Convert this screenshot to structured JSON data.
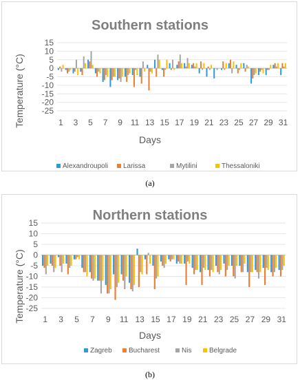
{
  "captions": {
    "a": "(a)",
    "b": "(b)"
  },
  "chart_data": [
    {
      "type": "bar",
      "title": "Southern stations",
      "xlabel": "Days",
      "ylabel": "Temperature (°C)",
      "ylim": [
        -25,
        15
      ],
      "yticks": [
        15,
        10,
        5,
        0,
        -5,
        -10,
        -15,
        -20,
        -25
      ],
      "categories": [
        1,
        2,
        3,
        4,
        5,
        6,
        7,
        8,
        9,
        10,
        11,
        12,
        13,
        14,
        15,
        16,
        17,
        18,
        19,
        20,
        21,
        22,
        23,
        24,
        25,
        26,
        27,
        28,
        29,
        30,
        31
      ],
      "xtick_labels": [
        "1",
        "3",
        "5",
        "7",
        "9",
        "11",
        "13",
        "15",
        "17",
        "19",
        "21",
        "23",
        "25",
        "27",
        "29",
        "31"
      ],
      "legend_position": "bottom",
      "series": [
        {
          "name": "Alexandroupoli",
          "color": "#2e9bd6",
          "values": [
            -1,
            -1,
            -3,
            -2,
            5,
            -3,
            -8,
            -11,
            -7,
            -5,
            -4,
            -5,
            2,
            5,
            -1,
            3,
            2,
            3,
            2,
            -3,
            -5,
            -6,
            -1,
            3,
            2,
            3,
            -9,
            -4,
            -4,
            2,
            -4
          ]
        },
        {
          "name": "Larissa",
          "color": "#ed7d31",
          "values": [
            1,
            -3,
            -2,
            -4,
            4,
            -5,
            -7,
            -7,
            -6,
            -8,
            -11,
            -9,
            -13,
            -5,
            -5,
            -1,
            4,
            1,
            3,
            4,
            1,
            0,
            4,
            5,
            -3,
            -2,
            -6,
            -2,
            -1,
            3,
            3
          ]
        },
        {
          "name": "Mytilini",
          "color": "#a5a5a5",
          "values": [
            -2,
            -2,
            5,
            7,
            10,
            -2,
            -4,
            -5,
            -8,
            -4,
            -1,
            4,
            -2,
            8,
            -1,
            5,
            8,
            6,
            1,
            -1,
            -1,
            -1,
            -1,
            -3,
            -1,
            2,
            -4,
            -1,
            -1,
            1,
            1
          ]
        },
        {
          "name": "Thessaloniki",
          "color": "#ffc000",
          "values": [
            2,
            -1,
            -4,
            3,
            2,
            -3,
            -5,
            -5,
            -5,
            -3,
            -4,
            -2,
            -3,
            5,
            5,
            -1,
            3,
            3,
            3,
            3,
            2,
            0,
            3,
            4,
            3,
            1,
            -3,
            -3,
            2,
            3,
            3
          ]
        }
      ]
    },
    {
      "type": "bar",
      "title": "Northern stations",
      "xlabel": "Days",
      "ylabel": "Temperature (°C)",
      "ylim": [
        -25,
        15
      ],
      "yticks": [
        15,
        10,
        5,
        0,
        -5,
        -10,
        -15,
        -20,
        -25
      ],
      "categories": [
        1,
        2,
        3,
        4,
        5,
        6,
        7,
        8,
        9,
        10,
        11,
        12,
        13,
        14,
        15,
        16,
        17,
        18,
        19,
        20,
        21,
        22,
        23,
        24,
        25,
        26,
        27,
        28,
        29,
        30,
        31
      ],
      "xtick_labels": [
        "1",
        "3",
        "5",
        "7",
        "9",
        "11",
        "13",
        "15",
        "17",
        "19",
        "21",
        "23",
        "25",
        "27",
        "29",
        "31"
      ],
      "legend_position": "bottom",
      "series": [
        {
          "name": "Zagreb",
          "color": "#2e9bd6",
          "values": [
            -5,
            -4,
            -1,
            -4,
            -2,
            -6,
            -8,
            -12,
            -14,
            -9,
            -9,
            -13,
            3,
            -2,
            -5,
            -3,
            -2,
            -4,
            -4,
            -6,
            -8,
            -7,
            -5,
            -4,
            -5,
            -5,
            -8,
            -7,
            -6,
            -8,
            -7
          ]
        },
        {
          "name": "Bucharest",
          "color": "#ed7d31",
          "values": [
            -6,
            -5,
            -5,
            -9,
            -2,
            -8,
            -11,
            -12,
            -18,
            -21,
            -12,
            -16,
            -15,
            -9,
            -16,
            -5,
            -3,
            -3,
            -14,
            -9,
            -14,
            -10,
            -8,
            -10,
            -10,
            -8,
            -15,
            -8,
            -14,
            -10,
            -10
          ]
        },
        {
          "name": "Nis",
          "color": "#a5a5a5",
          "values": [
            -9,
            -8,
            -8,
            -6,
            -1,
            -8,
            -12,
            -18,
            -18,
            -15,
            -16,
            -17,
            -8,
            1,
            -11,
            -6,
            -2,
            -4,
            -3,
            -7,
            -6,
            -7,
            -9,
            -7,
            -11,
            -8,
            -8,
            -11,
            -6,
            -8,
            -7
          ]
        },
        {
          "name": "Belgrade",
          "color": "#ffc000",
          "values": [
            -5,
            -6,
            -4,
            -5,
            -2,
            -10,
            -11,
            -12,
            -16,
            -13,
            -10,
            -14,
            -9,
            -4,
            -10,
            -4,
            -2,
            -4,
            -4,
            -7,
            -7,
            -8,
            -7,
            -5,
            -5,
            -4,
            -8,
            -8,
            -7,
            -6,
            -5
          ]
        }
      ]
    }
  ]
}
